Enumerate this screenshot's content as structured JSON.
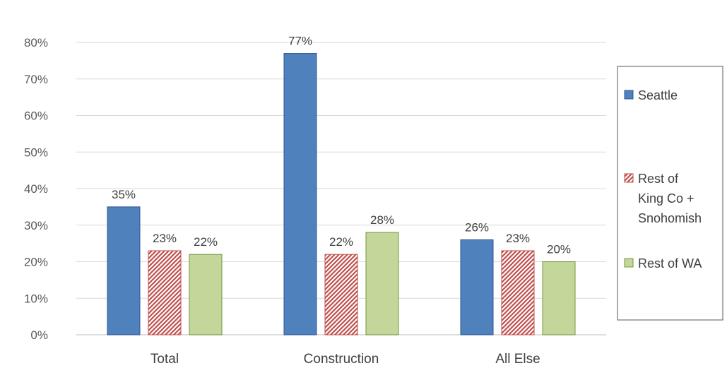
{
  "chart_data": {
    "type": "bar",
    "categories": [
      "Total",
      "Construction",
      "All Else"
    ],
    "series": [
      {
        "name": "Seattle",
        "values": [
          35,
          77,
          26
        ],
        "color": "#4f81bd",
        "pattern": "solid"
      },
      {
        "name": "Rest of King Co + Snohomish",
        "legend_lines": [
          "Rest of",
          "King Co +",
          "Snohomish"
        ],
        "values": [
          23,
          22,
          23
        ],
        "color": "#c0504d",
        "pattern": "diagonal-hatch"
      },
      {
        "name": "Rest of WA",
        "values": [
          22,
          28,
          20
        ],
        "color": "#c4d79b",
        "pattern": "solid"
      }
    ],
    "ylim": [
      0,
      80
    ],
    "yticks": [
      0,
      10,
      20,
      30,
      40,
      50,
      60,
      70,
      80
    ],
    "ytick_labels": [
      "0%",
      "10%",
      "20%",
      "30%",
      "40%",
      "50%",
      "60%",
      "70%",
      "80%"
    ],
    "data_labels": [
      [
        "35%",
        "77%",
        "26%"
      ],
      [
        "23%",
        "22%",
        "23%"
      ],
      [
        "22%",
        "28%",
        "20%"
      ]
    ],
    "gridlines": true,
    "legend_position": "right",
    "xlabel": "",
    "ylabel": ""
  }
}
